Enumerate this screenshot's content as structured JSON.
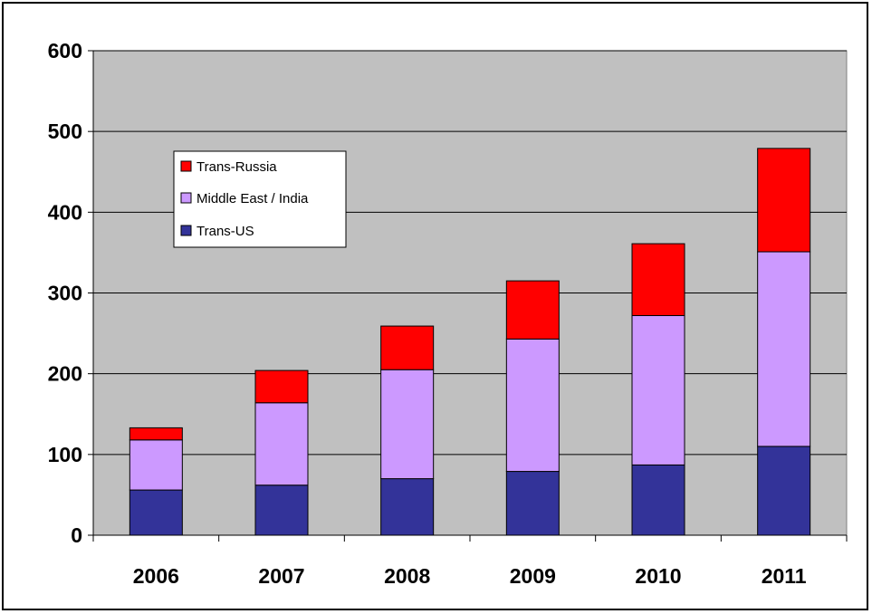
{
  "chart_data": {
    "type": "bar",
    "stacked": true,
    "categories": [
      "2006",
      "2007",
      "2008",
      "2009",
      "2010",
      "2011"
    ],
    "series": [
      {
        "name": "Trans-US",
        "color": "#333399",
        "values": [
          56,
          62,
          70,
          79,
          87,
          110
        ]
      },
      {
        "name": "Middle East / India",
        "color": "#cc99ff",
        "values": [
          62,
          102,
          135,
          164,
          185,
          241
        ]
      },
      {
        "name": "Trans-Russia",
        "color": "#ff0000",
        "values": [
          15,
          40,
          54,
          72,
          89,
          128
        ]
      }
    ],
    "legend_order": [
      "Trans-Russia",
      "Middle East / India",
      "Trans-US"
    ],
    "yticks": [
      "0",
      "100",
      "200",
      "300",
      "400",
      "500",
      "600"
    ],
    "ylim": [
      0,
      600
    ],
    "grid": true,
    "plot_background": "#c0c0c0",
    "legend_position": "upper-left inside plot",
    "title": "",
    "xlabel": "",
    "ylabel": ""
  }
}
